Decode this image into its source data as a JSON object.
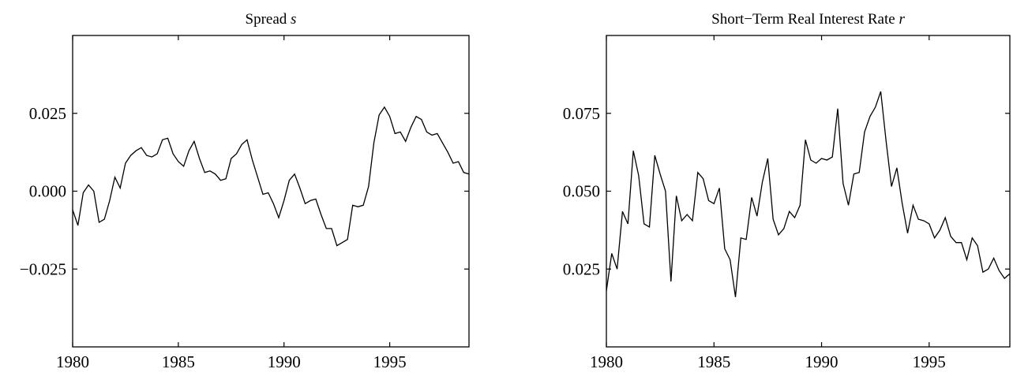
{
  "chart_data": [
    {
      "type": "line",
      "title": "Spread",
      "title_symbol": "s",
      "xlabel": "",
      "ylabel": "",
      "xlim": [
        1980,
        1998.75
      ],
      "ylim": [
        -0.05,
        0.05
      ],
      "xticks": [
        1980,
        1985,
        1990,
        1995
      ],
      "xtick_labels": [
        "1980",
        "1985",
        "1990",
        "1995"
      ],
      "yticks": [
        -0.025,
        0.0,
        0.025
      ],
      "ytick_labels": [
        "−0.025",
        "0.000",
        "0.025"
      ],
      "grid": false,
      "series": [
        {
          "x": [
            1980,
            1980.25,
            1980.5,
            1980.75,
            1981,
            1981.25,
            1981.5,
            1981.75,
            1982,
            1982.25,
            1982.5,
            1982.75,
            1983,
            1983.25,
            1983.5,
            1983.75,
            1984,
            1984.25,
            1984.5,
            1984.75,
            1985,
            1985.25,
            1985.5,
            1985.75,
            1986,
            1986.25,
            1986.5,
            1986.75,
            1987,
            1987.25,
            1987.5,
            1987.75,
            1988,
            1988.25,
            1988.5,
            1988.75,
            1989,
            1989.25,
            1989.5,
            1989.75,
            1990,
            1990.25,
            1990.5,
            1990.75,
            1991,
            1991.25,
            1991.5,
            1991.75,
            1992,
            1992.25,
            1992.5,
            1992.75,
            1993,
            1993.25,
            1993.5,
            1993.75,
            1994,
            1994.25,
            1994.5,
            1994.75,
            1995,
            1995.25,
            1995.5,
            1995.75,
            1996,
            1996.25,
            1996.5,
            1996.75,
            1997,
            1997.25,
            1997.5,
            1997.75,
            1998,
            1998.25,
            1998.5,
            1998.75
          ],
          "values": [
            -0.006,
            -0.011,
            -0.0005,
            0.002,
            0.0,
            -0.01,
            -0.009,
            -0.003,
            0.0045,
            0.001,
            0.009,
            0.0115,
            0.013,
            0.014,
            0.0115,
            0.011,
            0.012,
            0.0165,
            0.017,
            0.012,
            0.0095,
            0.008,
            0.013,
            0.016,
            0.0105,
            0.006,
            0.0065,
            0.0055,
            0.0035,
            0.004,
            0.0105,
            0.012,
            0.015,
            0.0165,
            0.01,
            0.0045,
            -0.001,
            -0.0005,
            -0.004,
            -0.0085,
            -0.003,
            0.0035,
            0.0055,
            0.001,
            -0.004,
            -0.003,
            -0.0025,
            -0.0075,
            -0.012,
            -0.012,
            -0.0175,
            -0.0165,
            -0.0155,
            -0.0045,
            -0.005,
            -0.0045,
            0.0015,
            0.0155,
            0.0245,
            0.027,
            0.024,
            0.0185,
            0.019,
            0.016,
            0.0205,
            0.024,
            0.023,
            0.019,
            0.018,
            0.0185,
            0.0155,
            0.0125,
            0.009,
            0.0095,
            0.006,
            0.0055
          ]
        }
      ]
    },
    {
      "type": "line",
      "title": "Short−Term Real Interest Rate",
      "title_symbol": "r",
      "xlabel": "",
      "ylabel": "",
      "xlim": [
        1980,
        1998.75
      ],
      "ylim": [
        0.0,
        0.1
      ],
      "xticks": [
        1980,
        1985,
        1990,
        1995
      ],
      "xtick_labels": [
        "1980",
        "1985",
        "1990",
        "1995"
      ],
      "yticks": [
        0.025,
        0.05,
        0.075
      ],
      "ytick_labels": [
        "0.025",
        "0.050",
        "0.075"
      ],
      "grid": false,
      "series": [
        {
          "x": [
            1980,
            1980.25,
            1980.5,
            1980.75,
            1981,
            1981.25,
            1981.5,
            1981.75,
            1982,
            1982.25,
            1982.5,
            1982.75,
            1983,
            1983.25,
            1983.5,
            1983.75,
            1984,
            1984.25,
            1984.5,
            1984.75,
            1985,
            1985.25,
            1985.5,
            1985.75,
            1986,
            1986.25,
            1986.5,
            1986.75,
            1987,
            1987.25,
            1987.5,
            1987.75,
            1988,
            1988.25,
            1988.5,
            1988.75,
            1989,
            1989.25,
            1989.5,
            1989.75,
            1990,
            1990.25,
            1990.5,
            1990.75,
            1991,
            1991.25,
            1991.5,
            1991.75,
            1992,
            1992.25,
            1992.5,
            1992.75,
            1993,
            1993.25,
            1993.5,
            1993.75,
            1994,
            1994.25,
            1994.5,
            1994.75,
            1995,
            1995.25,
            1995.5,
            1995.75,
            1996,
            1996.25,
            1996.5,
            1996.75,
            1997,
            1997.25,
            1997.5,
            1997.75,
            1998,
            1998.25,
            1998.5,
            1998.75
          ],
          "values": [
            0.018,
            0.03,
            0.025,
            0.0435,
            0.0395,
            0.063,
            0.055,
            0.0395,
            0.0385,
            0.0615,
            0.0555,
            0.05,
            0.021,
            0.0485,
            0.0405,
            0.0425,
            0.0405,
            0.056,
            0.054,
            0.047,
            0.046,
            0.051,
            0.0315,
            0.028,
            0.016,
            0.035,
            0.0345,
            0.048,
            0.042,
            0.053,
            0.0605,
            0.041,
            0.036,
            0.038,
            0.0435,
            0.0415,
            0.0455,
            0.0665,
            0.06,
            0.059,
            0.0605,
            0.06,
            0.061,
            0.0765,
            0.0525,
            0.0455,
            0.0555,
            0.056,
            0.069,
            0.074,
            0.077,
            0.082,
            0.066,
            0.0515,
            0.0575,
            0.046,
            0.0365,
            0.0455,
            0.041,
            0.0405,
            0.0395,
            0.035,
            0.0375,
            0.0415,
            0.0355,
            0.0335,
            0.0335,
            0.028,
            0.035,
            0.0325,
            0.024,
            0.025,
            0.0285,
            0.0245,
            0.022,
            0.0235
          ]
        }
      ]
    }
  ]
}
